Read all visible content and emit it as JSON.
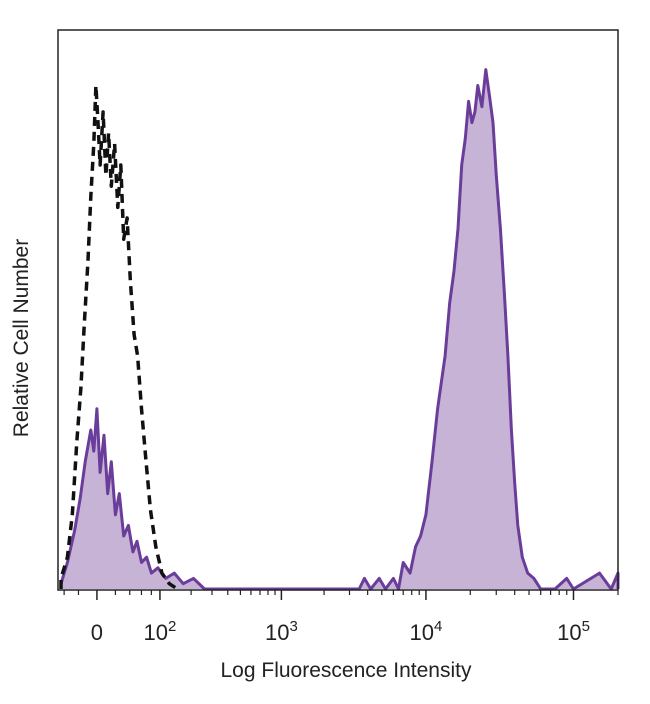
{
  "chart_data": {
    "type": "area",
    "title": "",
    "xlabel": "Log Fluorescence Intensity",
    "ylabel": "Relative Cell Number",
    "x_scale": "biexponential",
    "xlim": [
      -50,
      200000
    ],
    "ylim": [
      0,
      100
    ],
    "grid": false,
    "legend": "none",
    "x_ticks": [
      {
        "value": 0,
        "base": "0",
        "exp": ""
      },
      {
        "value": 100,
        "base": "10",
        "exp": "2"
      },
      {
        "value": 1000,
        "base": "10",
        "exp": "3"
      },
      {
        "value": 10000,
        "base": "10",
        "exp": "4"
      },
      {
        "value": 100000,
        "base": "10",
        "exp": "5"
      }
    ],
    "series": [
      {
        "style": "dashed-outline",
        "color": "#111111",
        "points": [
          [
            -45,
            2
          ],
          [
            -35,
            6
          ],
          [
            -28,
            14
          ],
          [
            -22,
            28
          ],
          [
            -17,
            38
          ],
          [
            -13,
            50
          ],
          [
            -9,
            62
          ],
          [
            -6,
            74
          ],
          [
            -3,
            84
          ],
          [
            -1,
            95
          ],
          [
            1,
            88
          ],
          [
            3,
            80
          ],
          [
            6,
            90
          ],
          [
            9,
            78
          ],
          [
            12,
            86
          ],
          [
            15,
            76
          ],
          [
            19,
            84
          ],
          [
            23,
            72
          ],
          [
            27,
            80
          ],
          [
            31,
            66
          ],
          [
            36,
            70
          ],
          [
            41,
            58
          ],
          [
            47,
            48
          ],
          [
            53,
            44
          ],
          [
            60,
            34
          ],
          [
            68,
            25
          ],
          [
            78,
            15
          ],
          [
            90,
            8
          ],
          [
            105,
            3
          ],
          [
            125,
            1
          ],
          [
            150,
            0
          ]
        ]
      },
      {
        "style": "filled",
        "color": "#6a3d9a",
        "fill": "#c7b3d6",
        "points": [
          [
            -45,
            1
          ],
          [
            -35,
            5
          ],
          [
            -25,
            11
          ],
          [
            -18,
            17
          ],
          [
            -12,
            24
          ],
          [
            -6,
            30
          ],
          [
            -3,
            26
          ],
          [
            0,
            34
          ],
          [
            3,
            22
          ],
          [
            7,
            29
          ],
          [
            11,
            18
          ],
          [
            15,
            24
          ],
          [
            20,
            14
          ],
          [
            25,
            18
          ],
          [
            31,
            10
          ],
          [
            38,
            12
          ],
          [
            45,
            7
          ],
          [
            52,
            9
          ],
          [
            60,
            5
          ],
          [
            70,
            6
          ],
          [
            80,
            3
          ],
          [
            95,
            4
          ],
          [
            115,
            2
          ],
          [
            140,
            3
          ],
          [
            170,
            1
          ],
          [
            210,
            2
          ],
          [
            260,
            0
          ],
          [
            400,
            0
          ],
          [
            800,
            0
          ],
          [
            2000,
            0
          ],
          [
            3500,
            0
          ],
          [
            3800,
            2
          ],
          [
            4200,
            0
          ],
          [
            4800,
            2
          ],
          [
            5300,
            0
          ],
          [
            6000,
            2
          ],
          [
            6500,
            0
          ],
          [
            7000,
            5
          ],
          [
            7800,
            3
          ],
          [
            8500,
            8
          ],
          [
            9200,
            10
          ],
          [
            10000,
            14
          ],
          [
            11000,
            24
          ],
          [
            12000,
            34
          ],
          [
            13500,
            44
          ],
          [
            14500,
            54
          ],
          [
            15500,
            60
          ],
          [
            16500,
            68
          ],
          [
            17500,
            80
          ],
          [
            18500,
            85
          ],
          [
            19500,
            92
          ],
          [
            20500,
            88
          ],
          [
            21500,
            90
          ],
          [
            22500,
            95
          ],
          [
            24000,
            91
          ],
          [
            25500,
            98
          ],
          [
            27000,
            93
          ],
          [
            28500,
            88
          ],
          [
            30000,
            78
          ],
          [
            32000,
            68
          ],
          [
            34000,
            56
          ],
          [
            36000,
            44
          ],
          [
            38000,
            30
          ],
          [
            40000,
            20
          ],
          [
            42000,
            12
          ],
          [
            45000,
            6
          ],
          [
            49000,
            3
          ],
          [
            54000,
            2
          ],
          [
            60000,
            0
          ],
          [
            75000,
            0
          ],
          [
            90000,
            2
          ],
          [
            100000,
            0
          ],
          [
            150000,
            3
          ],
          [
            180000,
            0
          ],
          [
            200000,
            3
          ]
        ]
      }
    ]
  }
}
